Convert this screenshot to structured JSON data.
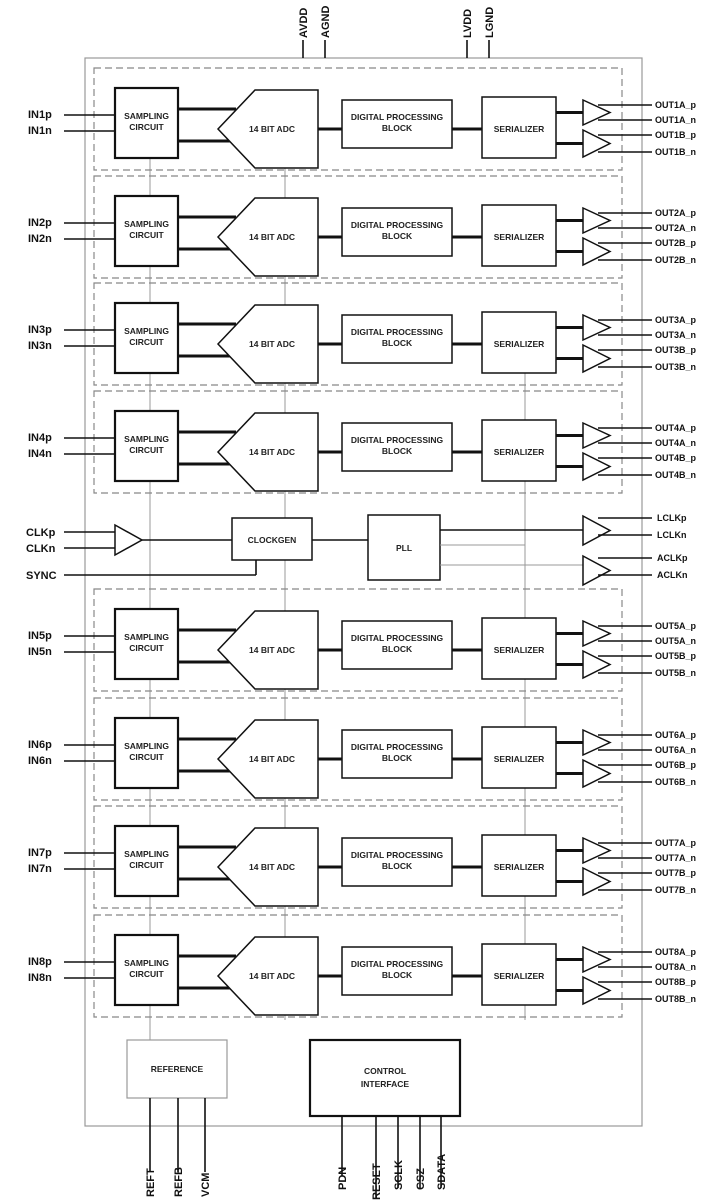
{
  "supply_pins": [
    "AVDD",
    "AGND",
    "LVDD",
    "LGND"
  ],
  "blocks": {
    "sampling": [
      "SAMPLING",
      "CIRCUIT"
    ],
    "adc": "14 BIT ADC",
    "dsp": [
      "DIGITAL PROCESSING",
      "BLOCK"
    ],
    "serializer": "SERIALIZER",
    "clockgen": "CLOCKGEN",
    "pll": "PLL",
    "reference": "REFERENCE",
    "control": [
      "CONTROL",
      "INTERFACE"
    ]
  },
  "channels": [
    {
      "in": [
        "IN1p",
        "IN1n"
      ],
      "out": [
        "OUT1A_p",
        "OUT1A_n",
        "OUT1B_p",
        "OUT1B_n"
      ]
    },
    {
      "in": [
        "IN2p",
        "IN2n"
      ],
      "out": [
        "OUT2A_p",
        "OUT2A_n",
        "OUT2B_p",
        "OUT2B_n"
      ]
    },
    {
      "in": [
        "IN3p",
        "IN3n"
      ],
      "out": [
        "OUT3A_p",
        "OUT3A_n",
        "OUT3B_p",
        "OUT3B_n"
      ]
    },
    {
      "in": [
        "IN4p",
        "IN4n"
      ],
      "out": [
        "OUT4A_p",
        "OUT4A_n",
        "OUT4B_p",
        "OUT4B_n"
      ]
    },
    {
      "in": [
        "IN5p",
        "IN5n"
      ],
      "out": [
        "OUT5A_p",
        "OUT5A_n",
        "OUT5B_p",
        "OUT5B_n"
      ]
    },
    {
      "in": [
        "IN6p",
        "IN6n"
      ],
      "out": [
        "OUT6A_p",
        "OUT6A_n",
        "OUT6B_p",
        "OUT6B_n"
      ]
    },
    {
      "in": [
        "IN7p",
        "IN7n"
      ],
      "out": [
        "OUT7A_p",
        "OUT7A_n",
        "OUT7B_p",
        "OUT7B_n"
      ]
    },
    {
      "in": [
        "IN8p",
        "IN8n"
      ],
      "out": [
        "OUT8A_p",
        "OUT8A_n",
        "OUT8B_p",
        "OUT8B_n"
      ]
    }
  ],
  "clock": {
    "inputs": [
      "CLKp",
      "CLKn",
      "SYNC"
    ],
    "outputs": [
      "LCLKp",
      "LCLKn",
      "ACLKp",
      "ACLKn"
    ]
  },
  "reference_pins": [
    "REFT",
    "REFB",
    "VCM"
  ],
  "control_pins": [
    "PDN",
    "RESET",
    "SCLK",
    "CSZ",
    "SDATA"
  ]
}
